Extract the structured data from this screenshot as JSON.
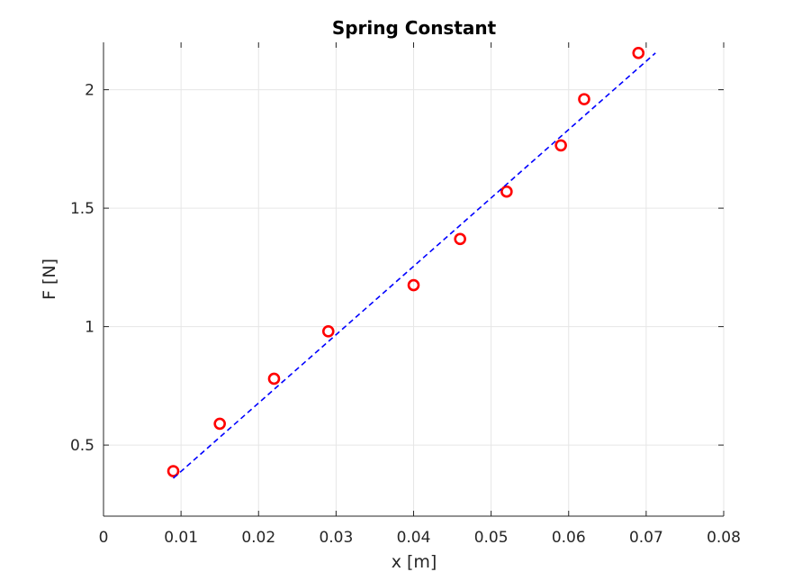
{
  "chart_data": {
    "type": "scatter",
    "title": "Spring Constant",
    "xlabel": "x [m]",
    "ylabel": "F [N]",
    "xlim": [
      0,
      0.08
    ],
    "ylim": [
      0.2,
      2.2
    ],
    "xticks": [
      0,
      0.01,
      0.02,
      0.03,
      0.04,
      0.05,
      0.06,
      0.07,
      0.08
    ],
    "xtick_labels": [
      "0",
      "0.01",
      "0.02",
      "0.03",
      "0.04",
      "0.05",
      "0.06",
      "0.07",
      "0.08"
    ],
    "yticks": [
      0.5,
      1,
      1.5,
      2
    ],
    "ytick_labels": [
      "0.5",
      "1",
      "1.5",
      "2"
    ],
    "grid": true,
    "series": [
      {
        "marker": "circle-open",
        "color": "#ff0000",
        "x": [
          0.009,
          0.015,
          0.022,
          0.029,
          0.04,
          0.046,
          0.052,
          0.059,
          0.062,
          0.069
        ],
        "y": [
          0.39,
          0.59,
          0.78,
          0.98,
          1.175,
          1.37,
          1.57,
          1.765,
          1.96,
          2.155
        ]
      },
      {
        "style": "dashed-line",
        "color": "#0000ff",
        "x": [
          0.009,
          0.0712
        ],
        "y": [
          0.36,
          2.155
        ]
      }
    ]
  }
}
